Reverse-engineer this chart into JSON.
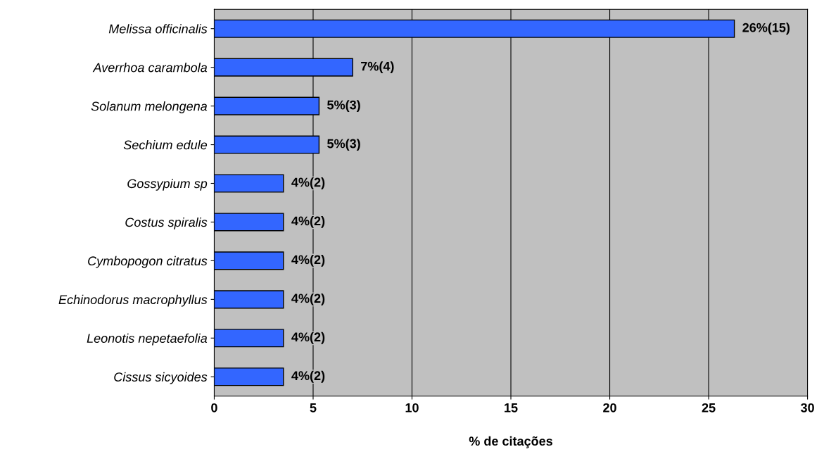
{
  "chart_data": {
    "type": "bar",
    "orientation": "horizontal",
    "xlabel": "% de citações",
    "categories": [
      "Melissa officinalis",
      "Averrhoa carambola",
      "Solanum melongena",
      "Sechium edule",
      "Gossypium sp",
      "Costus spiralis",
      "Cymbopogon citratus",
      "Echinodorus macrophyllus",
      "Leonotis nepetaefolia",
      "Cissus sicyoides"
    ],
    "values": [
      26.3,
      7.0,
      5.3,
      5.3,
      3.5,
      3.5,
      3.5,
      3.5,
      3.5,
      3.5
    ],
    "value_labels": [
      "26%(15)",
      "7%(4)",
      "5%(3)",
      "5%(3)",
      "4%(2)",
      "4%(2)",
      "4%(2)",
      "4%(2)",
      "4%(2)",
      "4%(2)"
    ],
    "color": "#3366ff",
    "xlim": [
      0,
      30
    ],
    "xticks": [
      0,
      5,
      10,
      15,
      20,
      25,
      30
    ],
    "grid": "x",
    "legend": false
  }
}
